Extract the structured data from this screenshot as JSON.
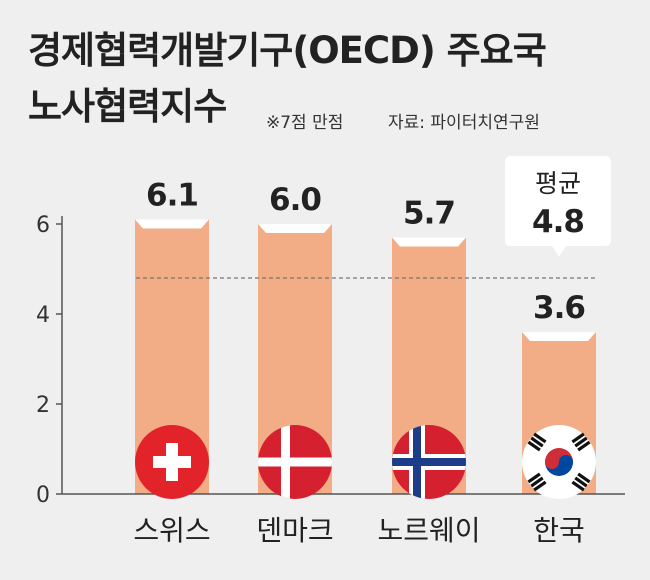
{
  "title_line1": "경제협력개발기구(OECD) 주요국",
  "title_line2": "노사협력지수",
  "note_scale": "※7점 만점",
  "note_source": "자료: 파이터치연구원",
  "chart_data": {
    "type": "bar",
    "categories": [
      "스위스",
      "덴마크",
      "노르웨이",
      "한국"
    ],
    "values": [
      6.1,
      6.0,
      5.7,
      3.6
    ],
    "value_labels": [
      "6.1",
      "6.0",
      "5.7",
      "3.6"
    ],
    "yticks": [
      "0",
      "2",
      "4",
      "6"
    ],
    "ylim": [
      0,
      7
    ],
    "average": {
      "label": "평균",
      "value": 4.8,
      "value_label": "4.8"
    },
    "grid": false,
    "colors": {
      "bar": "#f2ac86",
      "axis": "#555555",
      "average_line": "#777777",
      "background": "#efefef"
    },
    "flags": [
      "swiss-flag-icon",
      "danish-flag-icon",
      "norwegian-flag-icon",
      "korean-flag-icon"
    ]
  }
}
